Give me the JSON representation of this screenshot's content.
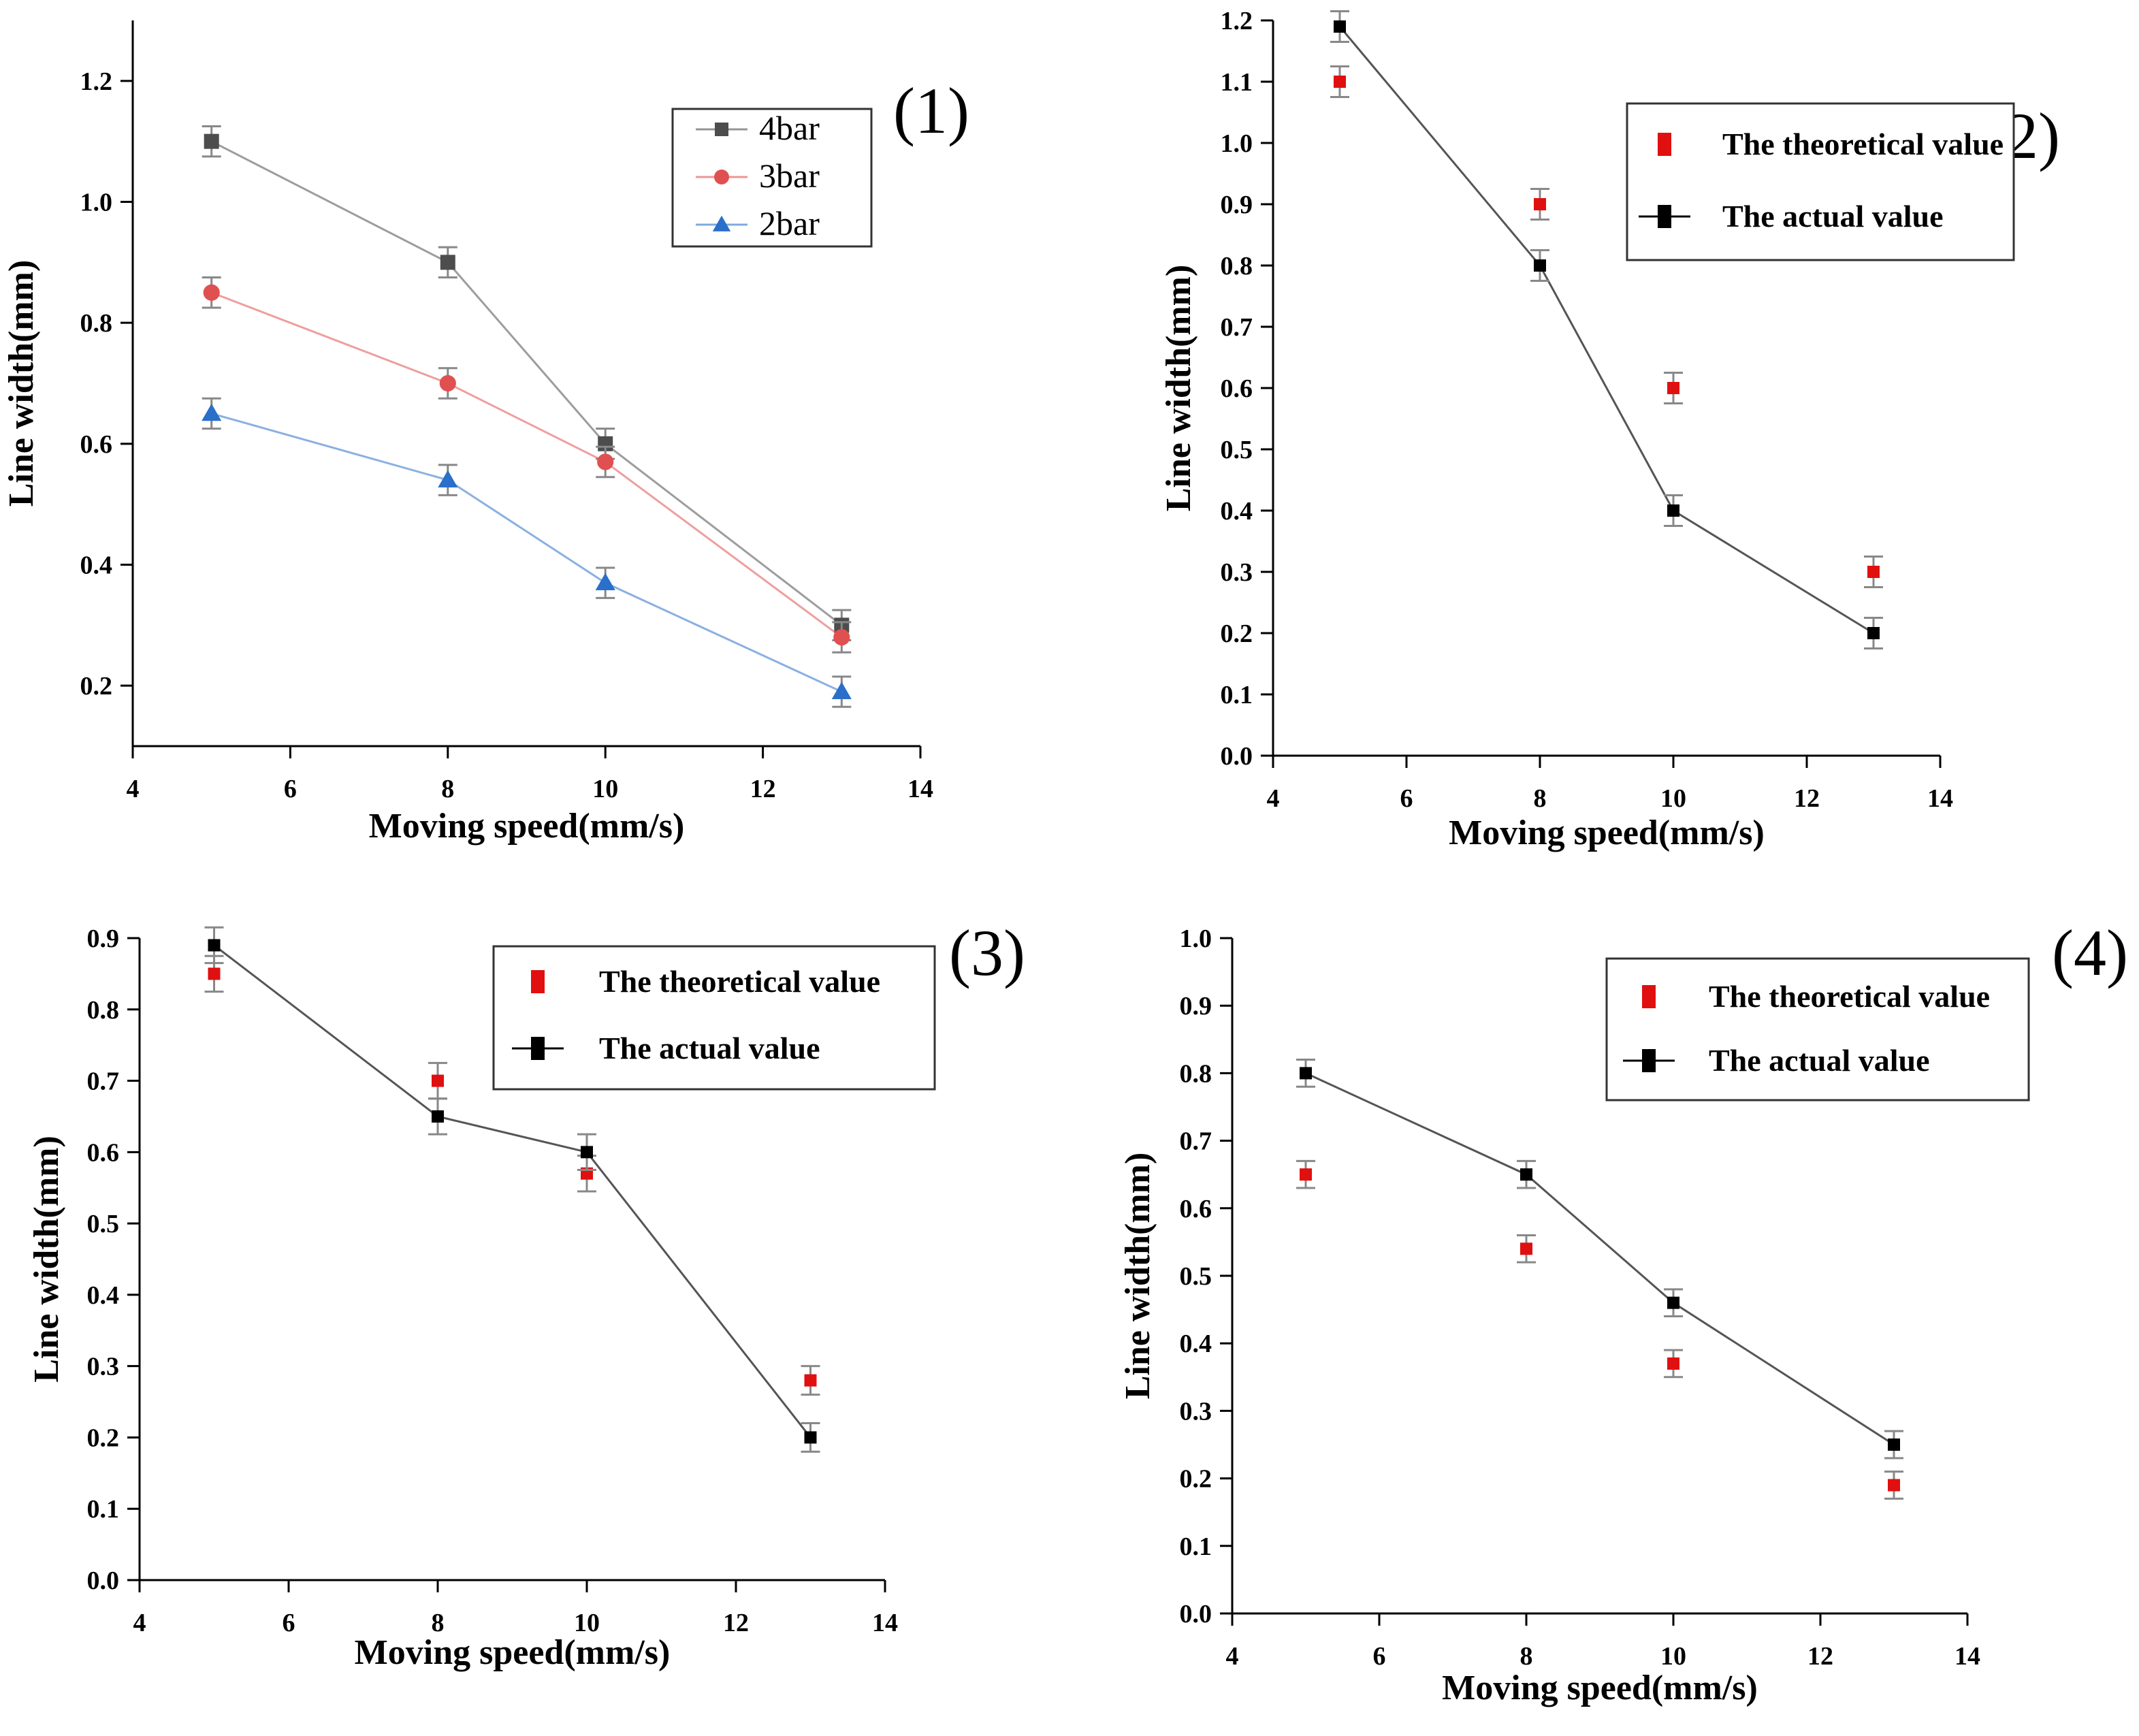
{
  "chart_data": [
    {
      "type": "line",
      "panel_label": "(1)",
      "xlabel": "Moving speed(mm/s)",
      "ylabel": "Line width(mm)",
      "xlim": [
        4,
        14
      ],
      "ylim": [
        0.1,
        1.3
      ],
      "xticks": [
        4,
        6,
        8,
        10,
        12,
        14
      ],
      "yticks": [
        0.2,
        0.4,
        0.6,
        0.8,
        1.0,
        1.2
      ],
      "ytick_labels": [
        "0.2",
        "0.4",
        "0.6",
        "0.8",
        "1.0",
        "1.2"
      ],
      "legend_position": "top-right",
      "series": [
        {
          "name": "4bar",
          "color": "#4d4d4d",
          "marker": "square",
          "x": [
            5,
            8,
            10,
            13
          ],
          "y": [
            1.1,
            0.9,
            0.6,
            0.3
          ],
          "err": [
            0.025,
            0.025,
            0.025,
            0.025
          ]
        },
        {
          "name": "3bar",
          "color": "#e05050",
          "marker": "circle",
          "x": [
            5,
            8,
            10,
            13
          ],
          "y": [
            0.85,
            0.7,
            0.57,
            0.28
          ],
          "err": [
            0.025,
            0.025,
            0.025,
            0.025
          ]
        },
        {
          "name": "2bar",
          "color": "#2a6fc9",
          "marker": "triangle",
          "x": [
            5,
            8,
            10,
            13
          ],
          "y": [
            0.65,
            0.54,
            0.37,
            0.19
          ],
          "err": [
            0.025,
            0.025,
            0.025,
            0.025
          ]
        }
      ]
    },
    {
      "type": "line",
      "panel_label": "(2)",
      "xlabel": "Moving speed(mm/s)",
      "ylabel": "Line width(mm)",
      "xlim": [
        4,
        14
      ],
      "ylim": [
        0.0,
        1.2
      ],
      "xticks": [
        4,
        6,
        8,
        10,
        12,
        14
      ],
      "yticks": [
        0.0,
        0.1,
        0.2,
        0.3,
        0.4,
        0.5,
        0.6,
        0.7,
        0.8,
        0.9,
        1.0,
        1.1,
        1.2
      ],
      "ytick_labels": [
        "0.0",
        "0.1",
        "0.2",
        "0.3",
        "0.4",
        "0.5",
        "0.6",
        "0.7",
        "0.8",
        "0.9",
        "1.0",
        "1.1",
        "1.2"
      ],
      "legend_position": "top-right",
      "series": [
        {
          "name": "The theoretical value",
          "color": "#e01010",
          "marker": "square",
          "line": false,
          "x": [
            5,
            8,
            10,
            13
          ],
          "y": [
            1.1,
            0.9,
            0.6,
            0.3
          ],
          "err": [
            0.025,
            0.025,
            0.025,
            0.025
          ]
        },
        {
          "name": "The actual value",
          "color": "#000000",
          "marker": "square",
          "line": true,
          "x": [
            5,
            8,
            10,
            13
          ],
          "y": [
            1.19,
            0.8,
            0.4,
            0.2
          ],
          "err": [
            0.025,
            0.025,
            0.025,
            0.025
          ]
        }
      ]
    },
    {
      "type": "line",
      "panel_label": "(3)",
      "xlabel": "Moving speed(mm/s)",
      "ylabel": "Line width(mm)",
      "xlim": [
        4,
        14
      ],
      "ylim": [
        0.0,
        0.9
      ],
      "xticks": [
        4,
        6,
        8,
        10,
        12,
        14
      ],
      "yticks": [
        0.0,
        0.1,
        0.2,
        0.3,
        0.4,
        0.5,
        0.6,
        0.7,
        0.8,
        0.9
      ],
      "ytick_labels": [
        "0.0",
        "0.1",
        "0.2",
        "0.3",
        "0.4",
        "0.5",
        "0.6",
        "0.7",
        "0.8",
        "0.9"
      ],
      "legend_position": "top-right",
      "series": [
        {
          "name": "The theoretical value",
          "color": "#e01010",
          "marker": "square",
          "line": false,
          "x": [
            5,
            8,
            10,
            13
          ],
          "y": [
            0.85,
            0.7,
            0.57,
            0.28
          ],
          "err": [
            0.025,
            0.025,
            0.025,
            0.02
          ]
        },
        {
          "name": "The actual value",
          "color": "#000000",
          "marker": "square",
          "line": true,
          "x": [
            5,
            8,
            10,
            13
          ],
          "y": [
            0.89,
            0.65,
            0.6,
            0.2
          ],
          "err": [
            0.025,
            0.025,
            0.025,
            0.02
          ]
        }
      ]
    },
    {
      "type": "line",
      "panel_label": "(4)",
      "xlabel": "Moving speed(mm/s)",
      "ylabel": "Line width(mm)",
      "xlim": [
        4,
        14
      ],
      "ylim": [
        0.0,
        1.0
      ],
      "xticks": [
        4,
        6,
        8,
        10,
        12,
        14
      ],
      "yticks": [
        0.0,
        0.1,
        0.2,
        0.3,
        0.4,
        0.5,
        0.6,
        0.7,
        0.8,
        0.9,
        1.0
      ],
      "ytick_labels": [
        "0.0",
        "0.1",
        "0.2",
        "0.3",
        "0.4",
        "0.5",
        "0.6",
        "0.7",
        "0.8",
        "0.9",
        "1.0"
      ],
      "legend_position": "top-right",
      "series": [
        {
          "name": "The theoretical value",
          "color": "#e01010",
          "marker": "square",
          "line": false,
          "x": [
            5,
            8,
            10,
            13
          ],
          "y": [
            0.65,
            0.54,
            0.37,
            0.19
          ],
          "err": [
            0.02,
            0.02,
            0.02,
            0.02
          ]
        },
        {
          "name": "The actual value",
          "color": "#000000",
          "marker": "square",
          "line": true,
          "x": [
            5,
            8,
            10,
            13
          ],
          "y": [
            0.8,
            0.65,
            0.46,
            0.25
          ],
          "err": [
            0.02,
            0.02,
            0.02,
            0.02
          ]
        }
      ]
    }
  ]
}
